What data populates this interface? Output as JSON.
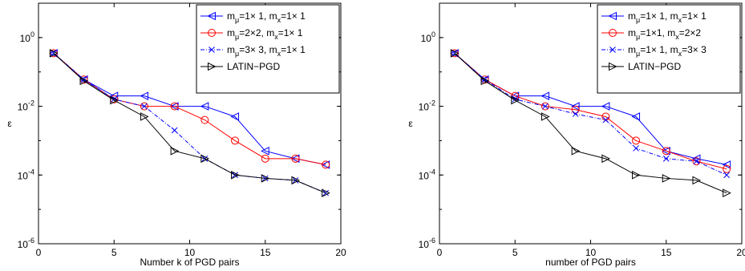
{
  "chart_data": [
    {
      "type": "line",
      "scale": "log-y",
      "xlabel": "Number k of PGD pairs",
      "ylabel": "ε",
      "xlim": [
        0,
        20
      ],
      "ylim": [
        1e-06,
        10
      ],
      "xticks": [
        "0",
        "5",
        "10",
        "15",
        "20"
      ],
      "yticks": [
        {
          "base": "10",
          "exp": "0"
        },
        {
          "base": "10",
          "exp": "-2"
        },
        {
          "base": "10",
          "exp": "-4"
        },
        {
          "base": "10",
          "exp": "-6"
        }
      ],
      "legend_position": "top-right",
      "series": [
        {
          "legend": {
            "m": "m",
            "msub": "μ",
            "mval": "=1× 1,",
            "x": "m",
            "xsub": "x",
            "xval": "=1× 1"
          },
          "color": "#0000ff",
          "marker": "triangle-left",
          "dash": "solid",
          "x": [
            1,
            3,
            5,
            7,
            9,
            11,
            13,
            15,
            17,
            19
          ],
          "y": [
            0.35,
            0.06,
            0.02,
            0.02,
            0.01,
            0.01,
            0.005,
            0.0005,
            0.0003,
            0.0002
          ]
        },
        {
          "legend": {
            "m": "m",
            "msub": "μ",
            "mval": "=2×2,",
            "x": "m",
            "xsub": "x",
            "xval": "=1× 1"
          },
          "color": "#ff0000",
          "marker": "circle",
          "dash": "solid",
          "x": [
            1,
            3,
            5,
            7,
            9,
            11,
            13,
            15,
            17,
            19
          ],
          "y": [
            0.35,
            0.06,
            0.016,
            0.01,
            0.01,
            0.004,
            0.001,
            0.0003,
            0.0003,
            0.0002
          ]
        },
        {
          "legend": {
            "m": "m",
            "msub": "μ",
            "mval": "=3× 3,",
            "x": "m",
            "xsub": "x",
            "xval": "=1× 1"
          },
          "color": "#0000ff",
          "marker": "x",
          "dash": "dashdot",
          "x": [
            1,
            3,
            5,
            7,
            9,
            11,
            13,
            15,
            17,
            19
          ],
          "y": [
            0.35,
            0.06,
            0.016,
            0.01,
            0.002,
            0.0003,
            0.0001,
            8e-05,
            7e-05,
            3e-05
          ]
        },
        {
          "legend": {
            "plain": "LATIN−PGD"
          },
          "color": "#000000",
          "marker": "triangle-right",
          "dash": "solid",
          "x": [
            1,
            3,
            5,
            7,
            9,
            11,
            13,
            15,
            17,
            19
          ],
          "y": [
            0.35,
            0.055,
            0.015,
            0.005,
            0.0005,
            0.0003,
            0.0001,
            8e-05,
            7e-05,
            3e-05
          ]
        }
      ]
    },
    {
      "type": "line",
      "scale": "log-y",
      "xlabel": "number of PGD pairs",
      "ylabel": "ε",
      "xlim": [
        0,
        20
      ],
      "ylim": [
        1e-06,
        10
      ],
      "xticks": [
        "0",
        "5",
        "10",
        "15",
        "20"
      ],
      "yticks": [
        {
          "base": "10",
          "exp": "0"
        },
        {
          "base": "10",
          "exp": "-2"
        },
        {
          "base": "10",
          "exp": "-4"
        },
        {
          "base": "10",
          "exp": "-6"
        }
      ],
      "legend_position": "top-right",
      "series": [
        {
          "legend": {
            "m": "m",
            "msub": "μ",
            "mval": "=1× 1,",
            "x": "m",
            "xsub": "x",
            "xval": "=1× 1"
          },
          "color": "#0000ff",
          "marker": "triangle-left",
          "dash": "solid",
          "x": [
            1,
            3,
            5,
            7,
            9,
            11,
            13,
            15,
            17,
            19
          ],
          "y": [
            0.35,
            0.06,
            0.02,
            0.02,
            0.01,
            0.01,
            0.005,
            0.0005,
            0.0003,
            0.0002
          ]
        },
        {
          "legend": {
            "m": "m",
            "msub": "μ",
            "mval": "=1×1,",
            "x": "m",
            "xsub": "x",
            "xval": "=2×2"
          },
          "color": "#ff0000",
          "marker": "circle",
          "dash": "solid",
          "x": [
            1,
            3,
            5,
            7,
            9,
            11,
            13,
            15,
            17,
            19
          ],
          "y": [
            0.35,
            0.06,
            0.02,
            0.01,
            0.008,
            0.005,
            0.001,
            0.0005,
            0.00025,
            0.00015
          ]
        },
        {
          "legend": {
            "m": "m",
            "msub": "μ",
            "mval": "=1× 1,",
            "x": "m",
            "xsub": "x",
            "xval": "=3× 3"
          },
          "color": "#0000ff",
          "marker": "x",
          "dash": "dashdot",
          "x": [
            1,
            3,
            5,
            7,
            9,
            11,
            13,
            15,
            17,
            19
          ],
          "y": [
            0.35,
            0.06,
            0.016,
            0.01,
            0.006,
            0.004,
            0.0006,
            0.0003,
            0.00025,
            0.0001
          ]
        },
        {
          "legend": {
            "plain": "LATIN−PGD"
          },
          "color": "#000000",
          "marker": "triangle-right",
          "dash": "solid",
          "x": [
            1,
            3,
            5,
            7,
            9,
            11,
            13,
            15,
            17,
            19
          ],
          "y": [
            0.35,
            0.055,
            0.015,
            0.005,
            0.0005,
            0.0003,
            0.0001,
            8e-05,
            7e-05,
            3e-05
          ]
        }
      ]
    }
  ]
}
